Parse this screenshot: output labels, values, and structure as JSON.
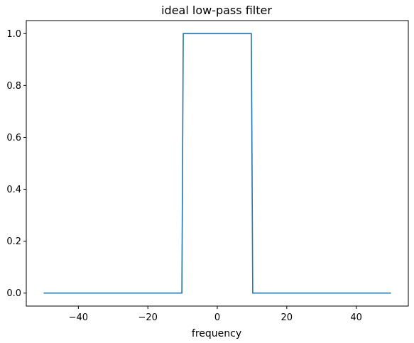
{
  "chart_data": {
    "type": "line",
    "title": "ideal low-pass filter",
    "xlabel": "frequency",
    "ylabel": "",
    "xlim": [
      -55,
      55
    ],
    "ylim": [
      -0.05,
      1.05
    ],
    "x_ticks": [
      -40,
      -20,
      0,
      20,
      40
    ],
    "x_tick_labels": [
      "−40",
      "−20",
      "0",
      "20",
      "40"
    ],
    "y_ticks": [
      0.0,
      0.2,
      0.4,
      0.6,
      0.8,
      1.0
    ],
    "y_tick_labels": [
      "0.0",
      "0.2",
      "0.4",
      "0.6",
      "0.8",
      "1.0"
    ],
    "grid": false,
    "series": [
      {
        "color": "#1f77b4",
        "x": [
          -50,
          -10.2,
          -9.8,
          9.8,
          10.2,
          50
        ],
        "y": [
          0,
          0,
          1,
          1,
          0,
          0
        ]
      }
    ]
  }
}
